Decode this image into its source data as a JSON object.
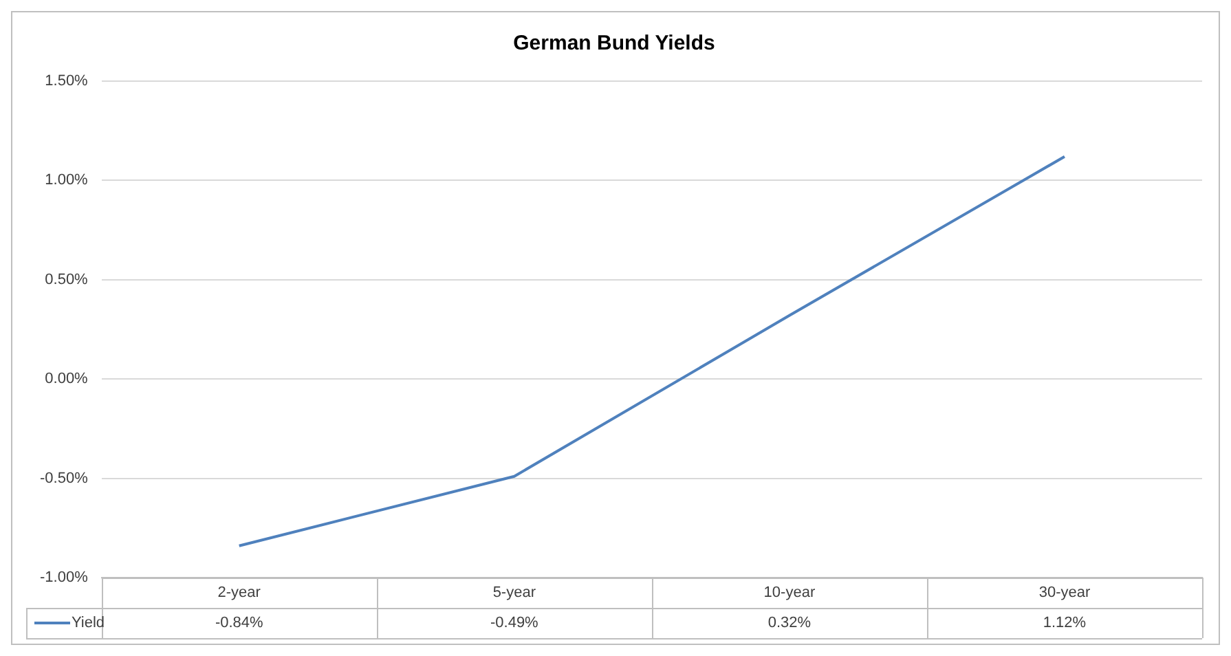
{
  "chart_data": {
    "type": "line",
    "title": "German Bund Yields",
    "categories": [
      "2-year",
      "5-year",
      "10-year",
      "30-year"
    ],
    "series": [
      {
        "name": "Yield",
        "color": "#4f81bd",
        "values": [
          -0.84,
          -0.49,
          0.32,
          1.12
        ],
        "value_labels": [
          "-0.84%",
          "-0.49%",
          "0.32%",
          "1.12%"
        ]
      }
    ],
    "ylim": [
      -1,
      1.5
    ],
    "yticks": [
      {
        "value": -1,
        "label": "-1.00%"
      },
      {
        "value": -0.5,
        "label": "-0.50%"
      },
      {
        "value": 0,
        "label": "0.00%"
      },
      {
        "value": 0.5,
        "label": "0.50%"
      },
      {
        "value": 1,
        "label": "1.00%"
      },
      {
        "value": 1.5,
        "label": "1.50%"
      }
    ],
    "grid": "y",
    "legend": "bottom",
    "marker": "none",
    "line_style": "solid"
  }
}
